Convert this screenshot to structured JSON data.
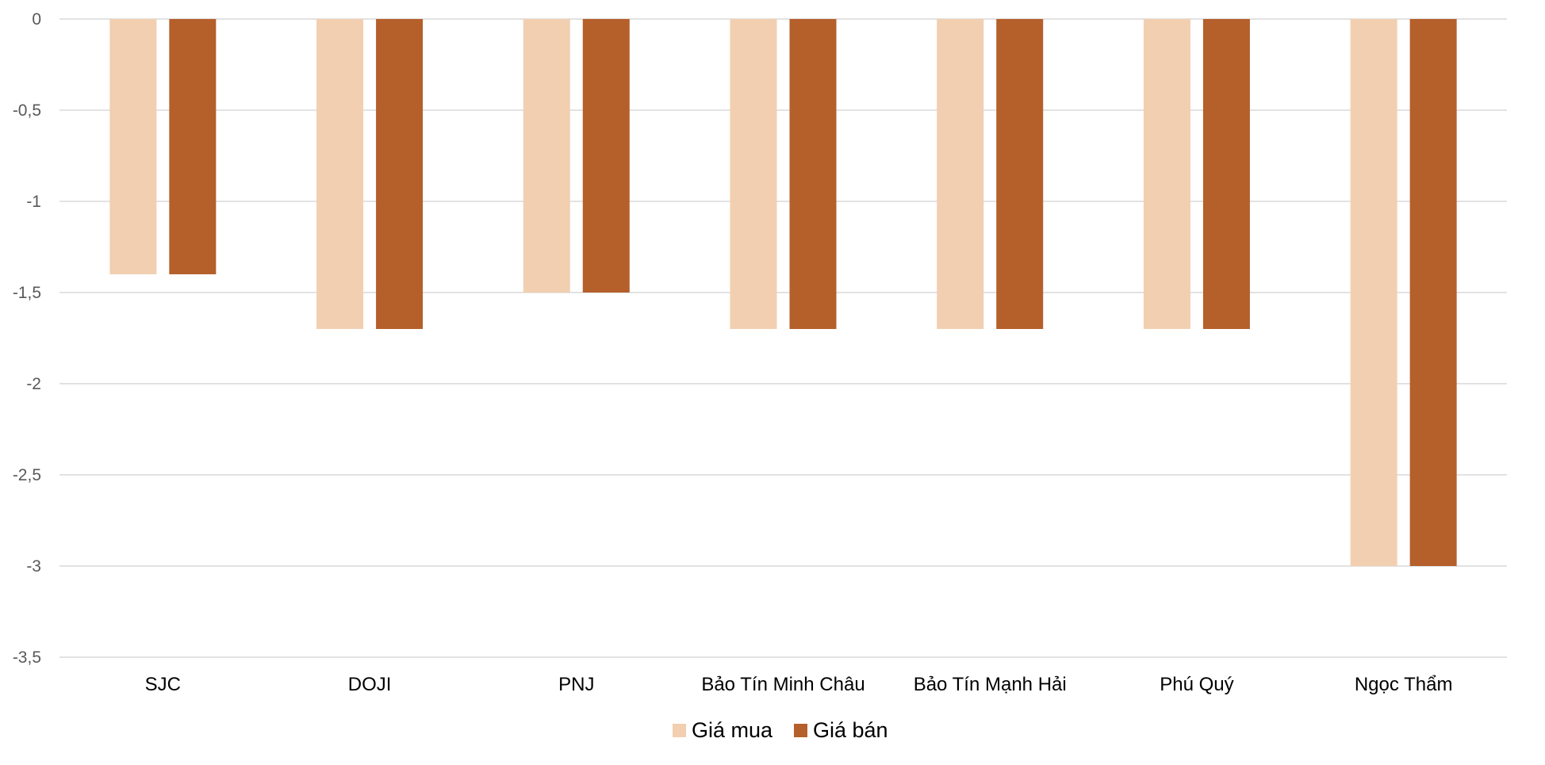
{
  "chart_data": {
    "type": "bar",
    "categories": [
      "SJC",
      "DOJI",
      "PNJ",
      "Bảo Tín Minh Châu",
      "Bảo Tín Mạnh Hải",
      "Phú Quý",
      "Ngọc Thẩm"
    ],
    "series": [
      {
        "name": "Giá mua",
        "color": "#F2CFB1",
        "values": [
          -1.4,
          -1.7,
          -1.5,
          -1.7,
          -1.7,
          -1.7,
          -3
        ]
      },
      {
        "name": "Giá bán",
        "color": "#B55F2A",
        "values": [
          -1.4,
          -1.7,
          -1.5,
          -1.7,
          -1.7,
          -1.7,
          -3
        ]
      }
    ],
    "y_ticks": [
      {
        "value": 0,
        "label": "0"
      },
      {
        "value": -0.5,
        "label": "-0,5"
      },
      {
        "value": -1,
        "label": "-1"
      },
      {
        "value": -1.5,
        "label": "-1,5"
      },
      {
        "value": -2,
        "label": "-2"
      },
      {
        "value": -2.5,
        "label": "-2,5"
      },
      {
        "value": -3,
        "label": "-3"
      },
      {
        "value": -3.5,
        "label": "-3,5"
      }
    ],
    "ylim": [
      -3.5,
      0
    ],
    "title": "",
    "xlabel": "",
    "ylabel": "",
    "grid": true,
    "gridline_color": "#D9D9D9",
    "legend_position": "bottom"
  }
}
